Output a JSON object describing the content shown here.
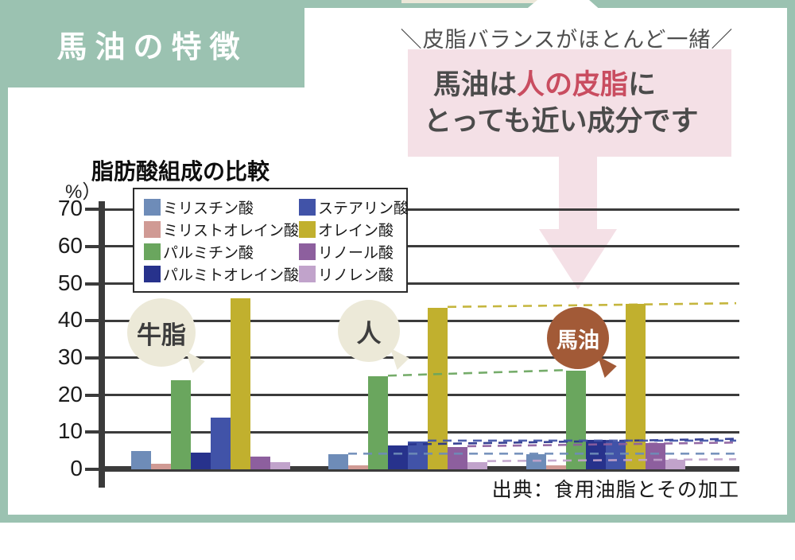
{
  "page": {
    "header_title": "馬油の特徴",
    "tagline": "＼皮脂バランスがほとんど一緒／",
    "frame_color": "#9bc2b1",
    "callout": {
      "line1_pre": "馬油は",
      "line1_em": "人の皮脂",
      "line1_post": "に",
      "line2": "とっても近い成分です",
      "bg_color": "#f4e0e6",
      "em_color": "#c94d60",
      "text_color": "#4b4b4b"
    },
    "source": "出典：食用油脂とその加工"
  },
  "chart_data": {
    "type": "bar",
    "title": "脂肪酸組成の比較",
    "unit_label": "%）",
    "ylim": [
      0,
      75
    ],
    "yticks": [
      0,
      10,
      20,
      30,
      40,
      50,
      60,
      70
    ],
    "grid": true,
    "legend_position": "top-left-inside",
    "categories": [
      "牛脂",
      "人",
      "馬油"
    ],
    "series": [
      {
        "name": "ミリスチン酸",
        "color": "#6e8cb8",
        "values": [
          5,
          4,
          4
        ]
      },
      {
        "name": "ミリストオレイン酸",
        "color": "#d09a94",
        "values": [
          1.5,
          1,
          1
        ]
      },
      {
        "name": "パルミチン酸",
        "color": "#6aa65e",
        "values": [
          24,
          25,
          26.5
        ]
      },
      {
        "name": "パルミトオレイン酸",
        "color": "#27328c",
        "values": [
          4.5,
          6.5,
          8
        ]
      },
      {
        "name": "ステアリン酸",
        "color": "#4153a8",
        "values": [
          14,
          7.5,
          7.5
        ]
      },
      {
        "name": "オレイン酸",
        "color": "#c1b02e",
        "values": [
          46,
          43.5,
          44.5
        ]
      },
      {
        "name": "リノール酸",
        "color": "#8d5f9e",
        "values": [
          3.5,
          6,
          7
        ]
      },
      {
        "name": "リノレン酸",
        "color": "#c1a3cb",
        "values": [
          2,
          2,
          2.5
        ]
      }
    ],
    "dashed_links_series": [
      0,
      2,
      3,
      4,
      5,
      6,
      7
    ],
    "group_label_colors": {
      "light_bg": "#ece9d8",
      "light_text": "#3d3d3d",
      "dark_bg": "#a25a37",
      "dark_text": "#ffffff"
    }
  }
}
